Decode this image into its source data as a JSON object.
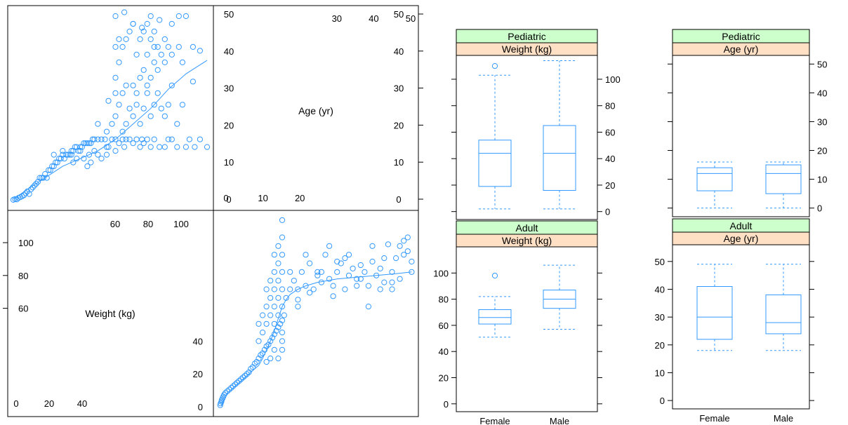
{
  "colors": {
    "accent": "#3399ff",
    "strip_green": "#ccffcc",
    "strip_peach": "#ffe0c4",
    "axis": "#000000"
  },
  "splom": {
    "var_labels": {
      "age": "Age (yr)",
      "weight": "Weight (kg)"
    },
    "age_ticks_right": [
      0,
      10,
      20,
      30,
      40,
      50
    ],
    "age_ticks_top": [
      30,
      40,
      50
    ],
    "age_ticks_bottom": [
      0,
      10,
      20
    ],
    "weight_ticks_top": [
      60,
      80,
      100
    ],
    "weight_ticks_left": [
      60,
      80,
      100
    ],
    "weight_ticks_bottom": [
      0,
      20,
      40
    ],
    "weight_ticks_left2": [
      0,
      20,
      40
    ]
  },
  "chart_data": [
    {
      "type": "scatter",
      "panel": "splom-age-vs-weight",
      "x_var": "Weight (kg)",
      "y_var": "Age (yr)",
      "xlim": [
        0,
        114
      ],
      "ylim": [
        -1,
        50
      ],
      "smooth": [
        [
          2,
          0.5
        ],
        [
          10,
          3
        ],
        [
          20,
          6
        ],
        [
          30,
          9
        ],
        [
          40,
          11
        ],
        [
          50,
          13
        ],
        [
          60,
          16
        ],
        [
          70,
          20
        ],
        [
          80,
          24
        ],
        [
          90,
          29
        ],
        [
          100,
          33
        ],
        [
          112,
          36.5
        ]
      ],
      "points": [
        [
          2,
          0.3
        ],
        [
          3,
          0.5
        ],
        [
          4,
          0.4
        ],
        [
          5,
          0.8
        ],
        [
          6,
          1
        ],
        [
          7,
          1.2
        ],
        [
          8,
          1.5
        ],
        [
          9,
          2
        ],
        [
          10,
          2.5
        ],
        [
          11,
          1.8
        ],
        [
          12,
          3
        ],
        [
          13,
          3.5
        ],
        [
          14,
          4
        ],
        [
          15,
          4.5
        ],
        [
          16,
          5
        ],
        [
          17,
          6
        ],
        [
          18,
          6
        ],
        [
          19,
          6
        ],
        [
          20,
          7
        ],
        [
          21,
          6
        ],
        [
          22,
          8
        ],
        [
          23,
          8
        ],
        [
          24,
          9
        ],
        [
          25,
          9
        ],
        [
          26,
          10
        ],
        [
          27,
          10
        ],
        [
          28,
          11
        ],
        [
          29,
          11
        ],
        [
          30,
          12
        ],
        [
          31,
          11
        ],
        [
          32,
          12
        ],
        [
          33,
          12
        ],
        [
          34,
          12
        ],
        [
          35,
          13
        ],
        [
          36,
          13
        ],
        [
          37,
          14
        ],
        [
          38,
          14
        ],
        [
          39,
          13
        ],
        [
          40,
          14
        ],
        [
          41,
          14
        ],
        [
          42,
          15
        ],
        [
          43,
          15
        ],
        [
          44,
          15
        ],
        [
          45,
          15
        ],
        [
          46,
          15
        ],
        [
          47,
          16
        ],
        [
          48,
          16
        ],
        [
          50,
          16
        ],
        [
          52,
          16
        ],
        [
          54,
          16
        ],
        [
          55,
          14
        ],
        [
          56,
          14
        ],
        [
          58,
          16
        ],
        [
          60,
          16
        ],
        [
          62,
          15
        ],
        [
          64,
          16
        ],
        [
          65,
          14
        ],
        [
          66,
          16
        ],
        [
          68,
          16
        ],
        [
          70,
          15
        ],
        [
          72,
          16
        ],
        [
          74,
          14
        ],
        [
          75,
          16
        ],
        [
          76,
          15
        ],
        [
          78,
          16
        ],
        [
          80,
          14
        ],
        [
          82,
          16
        ],
        [
          85,
          14
        ],
        [
          88,
          14
        ],
        [
          90,
          16
        ],
        [
          92,
          16
        ],
        [
          95,
          14
        ],
        [
          100,
          14
        ],
        [
          102,
          16
        ],
        [
          105,
          14
        ],
        [
          108,
          16
        ],
        [
          112,
          14
        ],
        [
          25,
          12
        ],
        [
          30,
          13
        ],
        [
          35,
          12
        ],
        [
          40,
          13
        ],
        [
          45,
          12
        ],
        [
          50,
          12
        ],
        [
          55,
          12
        ],
        [
          60,
          13
        ],
        [
          42,
          11
        ],
        [
          38,
          11
        ],
        [
          46,
          10
        ],
        [
          52,
          11
        ],
        [
          44,
          9
        ],
        [
          48,
          13
        ],
        [
          36,
          10
        ],
        [
          50,
          20
        ],
        [
          55,
          18
        ],
        [
          58,
          20
        ],
        [
          60,
          22
        ],
        [
          62,
          25
        ],
        [
          64,
          18
        ],
        [
          66,
          20
        ],
        [
          68,
          24
        ],
        [
          70,
          22
        ],
        [
          72,
          25
        ],
        [
          74,
          20
        ],
        [
          76,
          24
        ],
        [
          78,
          28
        ],
        [
          80,
          22
        ],
        [
          82,
          25
        ],
        [
          84,
          28
        ],
        [
          86,
          24
        ],
        [
          88,
          22
        ],
        [
          90,
          25
        ],
        [
          92,
          30
        ],
        [
          95,
          20
        ],
        [
          98,
          25
        ],
        [
          56,
          26
        ],
        [
          60,
          28
        ],
        [
          64,
          28
        ],
        [
          66,
          30
        ],
        [
          70,
          30
        ],
        [
          72,
          28
        ],
        [
          74,
          32
        ],
        [
          76,
          34
        ],
        [
          78,
          30
        ],
        [
          80,
          32
        ],
        [
          82,
          36
        ],
        [
          84,
          34
        ],
        [
          86,
          38
        ],
        [
          88,
          36
        ],
        [
          90,
          40
        ],
        [
          92,
          38
        ],
        [
          96,
          40
        ],
        [
          98,
          36
        ],
        [
          60,
          32
        ],
        [
          62,
          36
        ],
        [
          64,
          40
        ],
        [
          66,
          42
        ],
        [
          68,
          44
        ],
        [
          70,
          46
        ],
        [
          72,
          38
        ],
        [
          74,
          42
        ],
        [
          76,
          44
        ],
        [
          78,
          46
        ],
        [
          80,
          48
        ],
        [
          82,
          44
        ],
        [
          84,
          40
        ],
        [
          88,
          42
        ],
        [
          92,
          46
        ],
        [
          96,
          48
        ],
        [
          100,
          48
        ],
        [
          104,
          40
        ],
        [
          108,
          39
        ],
        [
          104,
          31
        ],
        [
          60,
          48
        ],
        [
          65,
          49
        ],
        [
          70,
          46
        ],
        [
          75,
          45
        ],
        [
          80,
          42
        ],
        [
          85,
          47
        ],
        [
          60,
          40
        ],
        [
          62,
          42
        ],
        [
          78,
          38
        ],
        [
          82,
          40
        ]
      ]
    },
    {
      "type": "scatter",
      "panel": "splom-weight-vs-age",
      "x_var": "Age (yr)",
      "y_var": "Weight (kg)",
      "xlim": [
        -1,
        50
      ],
      "ylim": [
        -2,
        114
      ],
      "smooth": [
        [
          0.5,
          3
        ],
        [
          2,
          10
        ],
        [
          4,
          14
        ],
        [
          6,
          18
        ],
        [
          8,
          22
        ],
        [
          10,
          26
        ],
        [
          11,
          30
        ],
        [
          12,
          35
        ],
        [
          13,
          40
        ],
        [
          14,
          46
        ],
        [
          15,
          53
        ],
        [
          16,
          60
        ],
        [
          17,
          64
        ],
        [
          18,
          67
        ],
        [
          20,
          70
        ],
        [
          22,
          72
        ],
        [
          25,
          74
        ],
        [
          30,
          76
        ],
        [
          35,
          77
        ],
        [
          40,
          78
        ],
        [
          45,
          79
        ],
        [
          49,
          80
        ]
      ],
      "points": [
        [
          0.2,
          3
        ],
        [
          0.3,
          4
        ],
        [
          0.5,
          5
        ],
        [
          0.6,
          6
        ],
        [
          0.8,
          7
        ],
        [
          1,
          8
        ],
        [
          1.2,
          9
        ],
        [
          1.5,
          10
        ],
        [
          2,
          11
        ],
        [
          2.5,
          12
        ],
        [
          3,
          13
        ],
        [
          3.5,
          14
        ],
        [
          4,
          15
        ],
        [
          4.5,
          16
        ],
        [
          5,
          17
        ],
        [
          5.5,
          18
        ],
        [
          6,
          19
        ],
        [
          6.5,
          20
        ],
        [
          7,
          21
        ],
        [
          7.5,
          22
        ],
        [
          8,
          24
        ],
        [
          8.5,
          25
        ],
        [
          9,
          27
        ],
        [
          9.5,
          28
        ],
        [
          10,
          30
        ],
        [
          10.5,
          32
        ],
        [
          11,
          33
        ],
        [
          11.5,
          35
        ],
        [
          12,
          37
        ],
        [
          12.5,
          38
        ],
        [
          13,
          40
        ],
        [
          13.5,
          42
        ],
        [
          14,
          44
        ],
        [
          14.5,
          46
        ],
        [
          15,
          48
        ],
        [
          15.5,
          50
        ],
        [
          16,
          52
        ],
        [
          16.5,
          55
        ],
        [
          10,
          40
        ],
        [
          11,
          45
        ],
        [
          12,
          50
        ],
        [
          12,
          60
        ],
        [
          13,
          55
        ],
        [
          13,
          65
        ],
        [
          14,
          50
        ],
        [
          14,
          60
        ],
        [
          14,
          70
        ],
        [
          14,
          80
        ],
        [
          15,
          55
        ],
        [
          15,
          65
        ],
        [
          15,
          75
        ],
        [
          15,
          85
        ],
        [
          15,
          95
        ],
        [
          16,
          60
        ],
        [
          16,
          70
        ],
        [
          16,
          80
        ],
        [
          16,
          90
        ],
        [
          16,
          100
        ],
        [
          16,
          110
        ],
        [
          14,
          90
        ],
        [
          13,
          75
        ],
        [
          12,
          70
        ],
        [
          11,
          55
        ],
        [
          10,
          50
        ],
        [
          16,
          45
        ],
        [
          16,
          40
        ],
        [
          16,
          35
        ],
        [
          15,
          30
        ],
        [
          14,
          35
        ],
        [
          13,
          30
        ],
        [
          12,
          28
        ],
        [
          17,
          65
        ],
        [
          18,
          70
        ],
        [
          19,
          75
        ],
        [
          20,
          60
        ],
        [
          21,
          80
        ],
        [
          22,
          72
        ],
        [
          23,
          85
        ],
        [
          24,
          70
        ],
        [
          25,
          78
        ],
        [
          26,
          74
        ],
        [
          27,
          90
        ],
        [
          28,
          76
        ],
        [
          29,
          72
        ],
        [
          30,
          80
        ],
        [
          31,
          85
        ],
        [
          32,
          70
        ],
        [
          33,
          78
        ],
        [
          34,
          82
        ],
        [
          35,
          76
        ],
        [
          36,
          84
        ],
        [
          37,
          80
        ],
        [
          38,
          72
        ],
        [
          39,
          86
        ],
        [
          40,
          78
        ],
        [
          41,
          82
        ],
        [
          42,
          74
        ],
        [
          43,
          96
        ],
        [
          44,
          80
        ],
        [
          45,
          88
        ],
        [
          46,
          76
        ],
        [
          47,
          98
        ],
        [
          48,
          92
        ],
        [
          49,
          80
        ],
        [
          18,
          80
        ],
        [
          20,
          70
        ],
        [
          22,
          90
        ],
        [
          25,
          80
        ],
        [
          28,
          95
        ],
        [
          30,
          86
        ],
        [
          33,
          90
        ],
        [
          36,
          76
        ],
        [
          39,
          95
        ],
        [
          42,
          88
        ],
        [
          44,
          70
        ],
        [
          46,
          95
        ],
        [
          48,
          100
        ],
        [
          49,
          86
        ],
        [
          20,
          64
        ],
        [
          23,
          68
        ],
        [
          26,
          80
        ],
        [
          29,
          66
        ],
        [
          32,
          88
        ],
        [
          35,
          72
        ],
        [
          38,
          60
        ],
        [
          41,
          70
        ],
        [
          44,
          74
        ],
        [
          47,
          90
        ]
      ]
    },
    {
      "type": "box",
      "panel": "pediatric-weight",
      "strips": [
        "Pediatric",
        "Weight (kg)"
      ],
      "categories": [
        "Female",
        "Male"
      ],
      "y_ticks": [
        0,
        20,
        40,
        60,
        80,
        100
      ],
      "ylim": [
        -6,
        118
      ],
      "boxes": [
        {
          "category": "Female",
          "whisker_low": 2,
          "q1": 19,
          "median": 44,
          "q3": 54,
          "whisker_high": 103,
          "outliers": [
            110
          ]
        },
        {
          "category": "Male",
          "whisker_low": 2,
          "q1": 16,
          "median": 44,
          "q3": 65,
          "whisker_high": 114,
          "outliers": []
        }
      ]
    },
    {
      "type": "box",
      "panel": "adult-weight",
      "strips": [
        "Adult",
        "Weight (kg)"
      ],
      "categories": [
        "Female",
        "Male"
      ],
      "y_ticks": [
        0,
        20,
        40,
        60,
        80,
        100
      ],
      "ylim": [
        -6,
        120
      ],
      "boxes": [
        {
          "category": "Female",
          "whisker_low": 51,
          "q1": 61,
          "median": 66,
          "q3": 72,
          "whisker_high": 82,
          "outliers": [
            98
          ]
        },
        {
          "category": "Male",
          "whisker_low": 57,
          "q1": 73,
          "median": 80,
          "q3": 87,
          "whisker_high": 106,
          "outliers": []
        }
      ]
    },
    {
      "type": "box",
      "panel": "pediatric-age",
      "strips": [
        "Pediatric",
        "Age (yr)"
      ],
      "categories": [
        "Female",
        "Male"
      ],
      "y_ticks": [
        0,
        10,
        20,
        30,
        40,
        50
      ],
      "ylim": [
        -3,
        53
      ],
      "boxes": [
        {
          "category": "Female",
          "whisker_low": 0,
          "q1": 6,
          "median": 12,
          "q3": 14,
          "whisker_high": 16,
          "outliers": []
        },
        {
          "category": "Male",
          "whisker_low": 0,
          "q1": 5,
          "median": 12,
          "q3": 15,
          "whisker_high": 16,
          "outliers": []
        }
      ]
    },
    {
      "type": "box",
      "panel": "adult-age",
      "strips": [
        "Adult",
        "Age (yr)"
      ],
      "categories": [
        "Female",
        "Male"
      ],
      "y_ticks": [
        0,
        10,
        20,
        30,
        40,
        50
      ],
      "ylim": [
        -3,
        56
      ],
      "boxes": [
        {
          "category": "Female",
          "whisker_low": 18,
          "q1": 22,
          "median": 30,
          "q3": 41,
          "whisker_high": 49,
          "outliers": []
        },
        {
          "category": "Male",
          "whisker_low": 18,
          "q1": 24,
          "median": 28,
          "q3": 38,
          "whisker_high": 49,
          "outliers": []
        }
      ]
    }
  ]
}
